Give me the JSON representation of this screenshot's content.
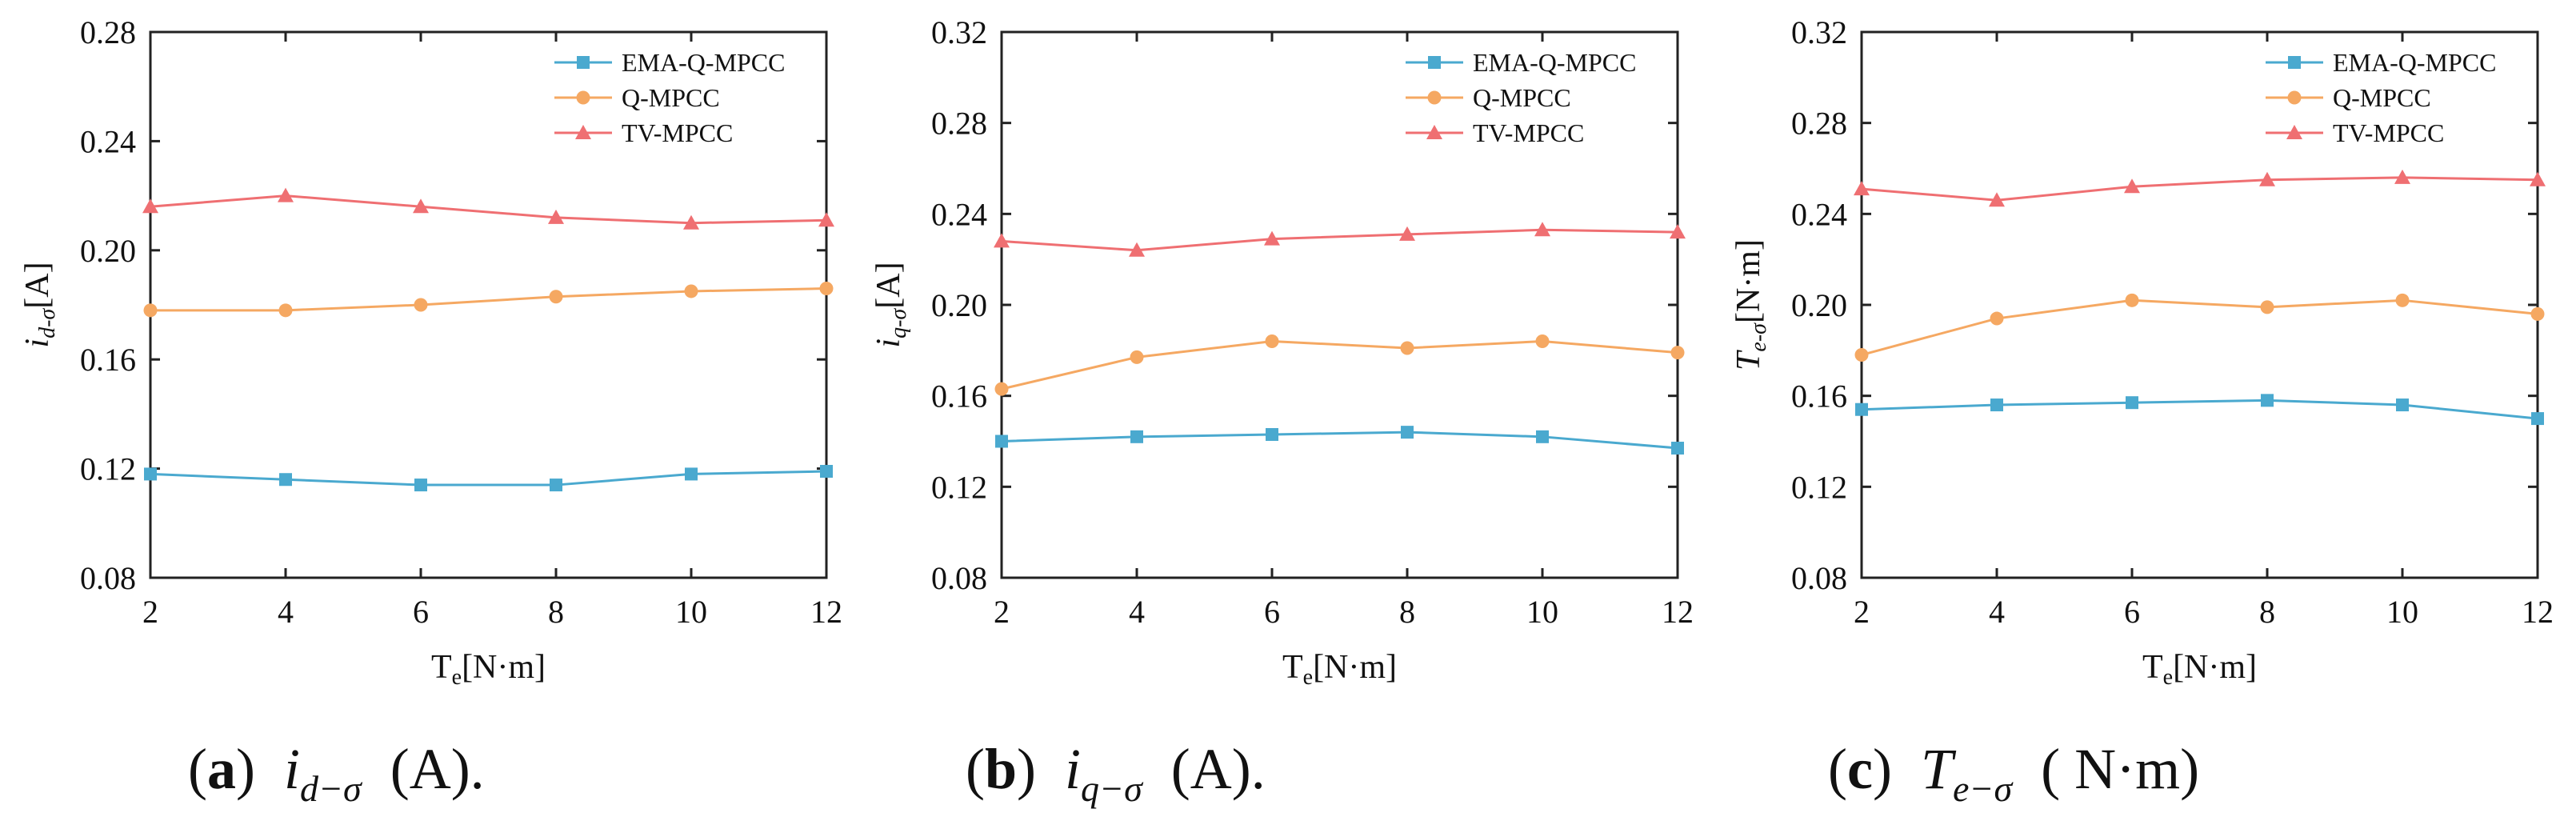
{
  "colors": {
    "EMA-Q-MPCC": "#4aa9cf",
    "Q-MPCC": "#f5a862",
    "TV-MPCC": "#ef6f72"
  },
  "chart_data": [
    {
      "type": "line",
      "title": "",
      "xlabel_main": "T",
      "xlabel_sub": "e",
      "xlabel_unit": "[N·m]",
      "ylabel_main": "i",
      "ylabel_sub": "d-σ",
      "ylabel_unit": "[A]",
      "x": [
        2,
        4,
        6,
        8,
        10,
        12
      ],
      "xlim": [
        2,
        12
      ],
      "ylim": [
        0.08,
        0.28
      ],
      "xticks": [
        2,
        4,
        6,
        8,
        10,
        12
      ],
      "yticks": [
        "0.08",
        "0.12",
        "0.16",
        "0.20",
        "0.24",
        "0.28"
      ],
      "legend_position": "top-right",
      "series": [
        {
          "name": "EMA-Q-MPCC",
          "marker": "square",
          "values": [
            0.118,
            0.116,
            0.114,
            0.114,
            0.118,
            0.119
          ]
        },
        {
          "name": "Q-MPCC",
          "marker": "circle",
          "values": [
            0.178,
            0.178,
            0.18,
            0.183,
            0.185,
            0.186
          ]
        },
        {
          "name": "TV-MPCC",
          "marker": "triangle",
          "values": [
            0.216,
            0.22,
            0.216,
            0.212,
            0.21,
            0.211
          ]
        }
      ],
      "caption": {
        "letter": "a",
        "main": "i",
        "sub": "d−σ",
        "unit": "(A)."
      }
    },
    {
      "type": "line",
      "title": "",
      "xlabel_main": "T",
      "xlabel_sub": "e",
      "xlabel_unit": "[N·m]",
      "ylabel_main": "i",
      "ylabel_sub": "q-σ",
      "ylabel_unit": "[A]",
      "x": [
        2,
        4,
        6,
        8,
        10,
        12
      ],
      "xlim": [
        2,
        12
      ],
      "ylim": [
        0.08,
        0.32
      ],
      "xticks": [
        2,
        4,
        6,
        8,
        10,
        12
      ],
      "yticks": [
        "0.08",
        "0.12",
        "0.16",
        "0.20",
        "0.24",
        "0.28",
        "0.32"
      ],
      "legend_position": "top-right",
      "series": [
        {
          "name": "EMA-Q-MPCC",
          "marker": "square",
          "values": [
            0.14,
            0.142,
            0.143,
            0.144,
            0.142,
            0.137
          ]
        },
        {
          "name": "Q-MPCC",
          "marker": "circle",
          "values": [
            0.163,
            0.177,
            0.184,
            0.181,
            0.184,
            0.179
          ]
        },
        {
          "name": "TV-MPCC",
          "marker": "triangle",
          "values": [
            0.228,
            0.224,
            0.229,
            0.231,
            0.233,
            0.232
          ]
        }
      ],
      "caption": {
        "letter": "b",
        "main": "i",
        "sub": "q−σ",
        "unit": "(A)."
      }
    },
    {
      "type": "line",
      "title": "",
      "xlabel_main": "T",
      "xlabel_sub": "e",
      "xlabel_unit": "[N·m]",
      "ylabel_main": "T",
      "ylabel_sub": "e-σ",
      "ylabel_unit": "[N·m]",
      "x": [
        2,
        4,
        6,
        8,
        10,
        12
      ],
      "xlim": [
        2,
        12
      ],
      "ylim": [
        0.08,
        0.32
      ],
      "xticks": [
        2,
        4,
        6,
        8,
        10,
        12
      ],
      "yticks": [
        "0.08",
        "0.12",
        "0.16",
        "0.20",
        "0.24",
        "0.28",
        "0.32"
      ],
      "legend_position": "top-right",
      "series": [
        {
          "name": "EMA-Q-MPCC",
          "marker": "square",
          "values": [
            0.154,
            0.156,
            0.157,
            0.158,
            0.156,
            0.15
          ]
        },
        {
          "name": "Q-MPCC",
          "marker": "circle",
          "values": [
            0.178,
            0.194,
            0.202,
            0.199,
            0.202,
            0.196
          ]
        },
        {
          "name": "TV-MPCC",
          "marker": "triangle",
          "values": [
            0.251,
            0.246,
            0.252,
            0.255,
            0.256,
            0.255
          ]
        }
      ],
      "caption": {
        "letter": "c",
        "main": "T",
        "sub": "e−σ",
        "unit": "( N·m)"
      }
    }
  ]
}
